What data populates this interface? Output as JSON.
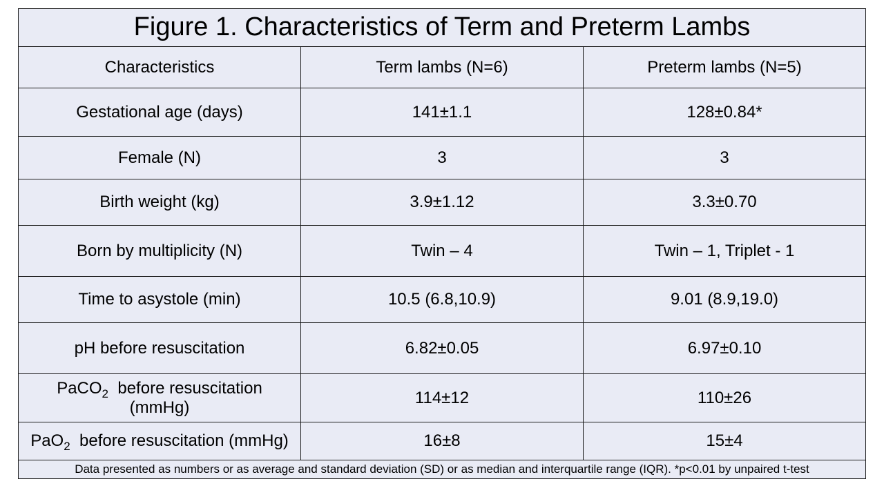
{
  "title": "Figure 1. Characteristics of Term and Preterm Lambs",
  "headers": [
    "Characteristics",
    "Term lambs (N=6)",
    "Preterm lambs (N=5)"
  ],
  "rows": [
    {
      "label": "Gestational age (days)",
      "term": "141±1.1",
      "preterm": "128±0.84*"
    },
    {
      "label": "Female (N)",
      "term": "3",
      "preterm": "3"
    },
    {
      "label": "Birth weight (kg)",
      "term": "3.9±1.12",
      "preterm": "3.3±0.70"
    },
    {
      "label": "Born by multiplicity (N)",
      "term": "Twin – 4",
      "preterm": "Twin – 1, Triplet - 1"
    },
    {
      "label": "Time to asystole (min)",
      "term": "10.5 (6.8,10.9)",
      "preterm": "9.01 (8.9,19.0)"
    },
    {
      "label": "pH before resuscitation",
      "term": "6.82±0.05",
      "preterm": "6.97±0.10"
    },
    {
      "label_prefix": "PaCO",
      "label_sub": "2",
      "label_line1_suffix": "before resuscitation",
      "label_line2": "(mmHg)",
      "term": "114±12",
      "preterm": "110±26"
    },
    {
      "label_prefix": "PaO",
      "label_sub": "2",
      "label_suffix": "before resuscitation (mmHg)",
      "term": "16±8",
      "preterm": "15±4"
    }
  ],
  "footnote": "Data presented as numbers or as average and standard deviation (SD) or as median and interquartile range (IQR). *p<0.01 by unpaired t-test"
}
